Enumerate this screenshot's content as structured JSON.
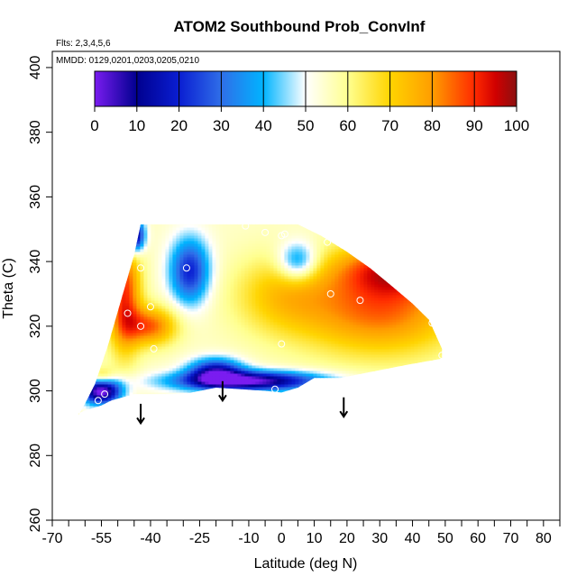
{
  "chart_data": {
    "type": "heatmap",
    "title": "ATOM2 Southbound Prob_ConvInf",
    "subtitle_flights": "Flts: 2,3,4,5,6",
    "subtitle_dates": "MMDD: 0129,0201,0203,0205,0210",
    "xlabel": "Latitude (deg N)",
    "ylabel": "Theta (C)",
    "xlim": [
      -70,
      85
    ],
    "ylim": [
      260,
      405
    ],
    "x_ticks": [
      -70,
      -55,
      -40,
      -25,
      -10,
      0,
      10,
      20,
      30,
      40,
      50,
      60,
      70,
      80
    ],
    "x_tick_labels": [
      "-70",
      "-55",
      "-40",
      "-25",
      "-10",
      "0",
      "10",
      "20",
      "30",
      "40",
      "50",
      "60",
      "70",
      "80"
    ],
    "x_minor_ticks": [
      -65,
      -60,
      -50,
      -45,
      -35,
      -30,
      -20,
      -15,
      -5,
      5,
      15,
      25,
      35,
      45,
      55,
      65,
      75,
      85
    ],
    "y_ticks": [
      260,
      280,
      300,
      320,
      340,
      360,
      380,
      400
    ],
    "y_tick_labels": [
      "260",
      "280",
      "300",
      "320",
      "340",
      "360",
      "380",
      "400"
    ],
    "colorbar": {
      "range": [
        0,
        100
      ],
      "ticks": [
        0,
        10,
        20,
        30,
        40,
        50,
        60,
        70,
        80,
        90,
        100
      ],
      "tick_labels": [
        "0",
        "10",
        "20",
        "30",
        "40",
        "50",
        "60",
        "70",
        "80",
        "90",
        "100"
      ],
      "colors": [
        "#7a1cf0",
        "#00008f",
        "#0a1ed2",
        "#2f6ee8",
        "#00b4ff",
        "#ffffff",
        "#ffff90",
        "#ffd400",
        "#ff9d00",
        "#ff2a00",
        "#d10000",
        "#8b1010"
      ]
    },
    "sample_points": [
      [
        -48,
        346
      ],
      [
        -43,
        338
      ],
      [
        -29,
        338
      ],
      [
        -40,
        326
      ],
      [
        -43,
        320
      ],
      [
        -39,
        313
      ],
      [
        -47,
        324
      ],
      [
        -54,
        299
      ],
      [
        -56,
        297
      ],
      [
        -11,
        351
      ],
      [
        -5,
        349
      ],
      [
        0,
        348
      ],
      [
        1,
        348.5
      ],
      [
        14,
        346
      ],
      [
        15,
        330
      ],
      [
        24,
        328
      ],
      [
        0,
        314.5
      ],
      [
        -2,
        300.5
      ],
      [
        49,
        311
      ],
      [
        46,
        321
      ]
    ],
    "arrows": [
      {
        "x": -43,
        "y_top": 296,
        "y_bottom": 290
      },
      {
        "x": -18,
        "y_top": 303,
        "y_bottom": 297
      },
      {
        "x": 19,
        "y_top": 298,
        "y_bottom": 292
      }
    ]
  }
}
